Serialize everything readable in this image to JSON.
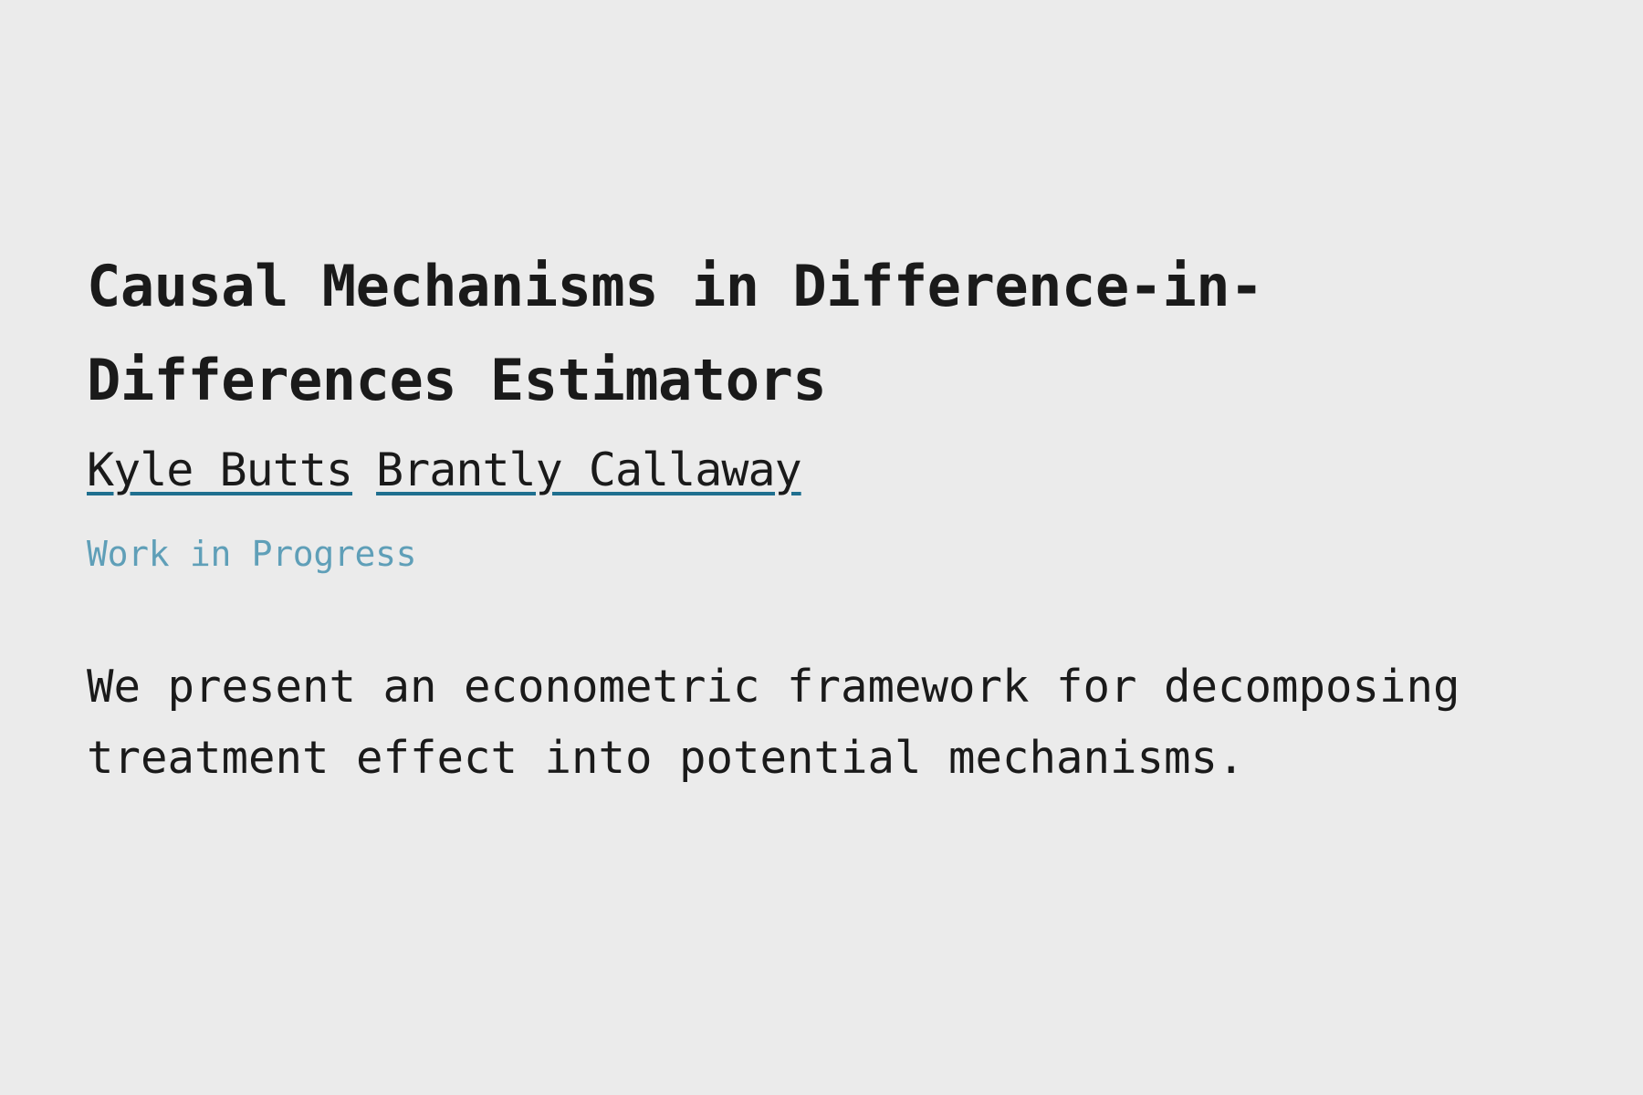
{
  "paper": {
    "title": "Causal Mechanisms in Difference-in-Differences Estimators",
    "authors": [
      {
        "name": "Kyle Butts"
      },
      {
        "name": "Brantly Callaway"
      }
    ],
    "status": "Work in Progress",
    "abstract": "We present an econometric framework for decomposing treatment effect into potential mechanisms."
  },
  "colors": {
    "background": "#ebebeb",
    "text": "#1a1a1a",
    "link_underline": "#1f6f8f",
    "status_text": "#5f9fb8"
  }
}
